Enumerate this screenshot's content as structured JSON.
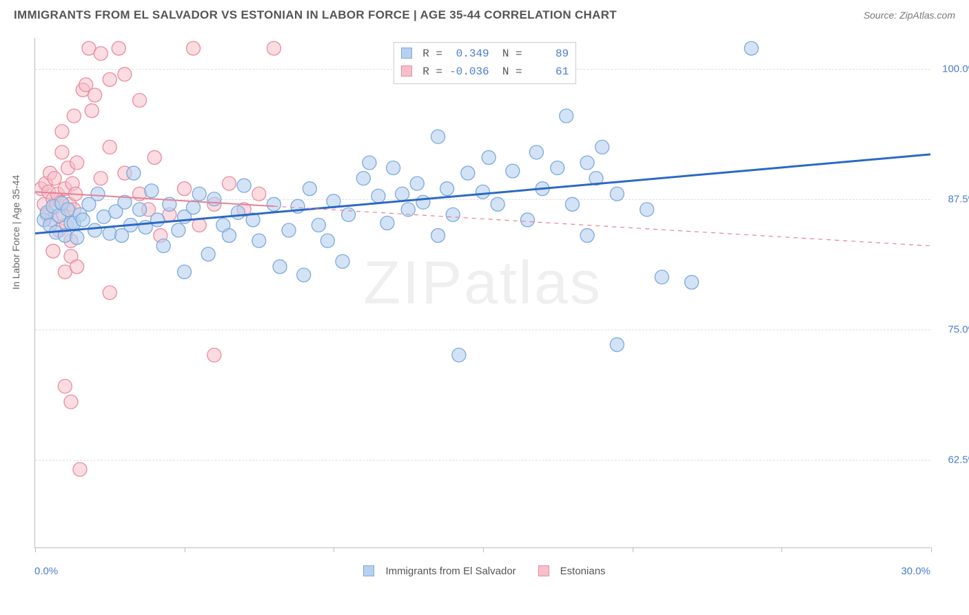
{
  "title": "IMMIGRANTS FROM EL SALVADOR VS ESTONIAN IN LABOR FORCE | AGE 35-44 CORRELATION CHART",
  "source_label": "Source: ",
  "source_name": "ZipAtlas.com",
  "ylabel": "In Labor Force | Age 35-44",
  "watermark": "ZIPatlas",
  "chart": {
    "type": "scatter",
    "xlim": [
      0,
      30
    ],
    "ylim_visible": [
      54,
      103
    ],
    "yticks": [
      62.5,
      75.0,
      87.5,
      100.0
    ],
    "ytick_labels": [
      "62.5%",
      "75.0%",
      "87.5%",
      "100.0%"
    ],
    "xtick_positions": [
      0,
      5,
      10,
      15,
      20,
      25,
      30
    ],
    "x_axis_left_label": "0.0%",
    "x_axis_right_label": "30.0%",
    "background_color": "#ffffff",
    "grid_color": "#dddddd",
    "axis_color": "#bbbbbb",
    "marker_radius": 10,
    "marker_stroke_width": 1.3,
    "series": [
      {
        "name": "Immigrants from El Salvador",
        "fill": "#b6d0ef",
        "stroke": "#7aa8dd",
        "fill_opacity": 0.6,
        "trend": {
          "color": "#2b68c5",
          "width": 3,
          "dash": "none",
          "y_at_x0": 84.2,
          "y_at_x30": 91.8
        },
        "R": "0.349",
        "N": "89",
        "points": [
          [
            0.3,
            85.5
          ],
          [
            0.4,
            86.2
          ],
          [
            0.5,
            85.0
          ],
          [
            0.6,
            86.8
          ],
          [
            0.7,
            84.3
          ],
          [
            0.8,
            85.9
          ],
          [
            0.9,
            87.1
          ],
          [
            1.0,
            84.0
          ],
          [
            1.1,
            86.5
          ],
          [
            1.2,
            85.2
          ],
          [
            1.3,
            85.2
          ],
          [
            1.4,
            83.8
          ],
          [
            1.5,
            86.0
          ],
          [
            1.6,
            85.5
          ],
          [
            1.8,
            87.0
          ],
          [
            2.0,
            84.5
          ],
          [
            2.1,
            88.0
          ],
          [
            2.3,
            85.8
          ],
          [
            2.5,
            84.2
          ],
          [
            2.7,
            86.3
          ],
          [
            2.9,
            84.0
          ],
          [
            3.0,
            87.2
          ],
          [
            3.2,
            85.0
          ],
          [
            3.3,
            90.0
          ],
          [
            3.5,
            86.5
          ],
          [
            3.7,
            84.8
          ],
          [
            3.9,
            88.3
          ],
          [
            4.1,
            85.5
          ],
          [
            4.3,
            83.0
          ],
          [
            4.5,
            87.0
          ],
          [
            4.8,
            84.5
          ],
          [
            5.0,
            85.8
          ],
          [
            5.0,
            80.5
          ],
          [
            5.3,
            86.7
          ],
          [
            5.5,
            88.0
          ],
          [
            5.8,
            82.2
          ],
          [
            6.0,
            87.5
          ],
          [
            6.3,
            85.0
          ],
          [
            6.5,
            84.0
          ],
          [
            6.8,
            86.2
          ],
          [
            7.0,
            88.8
          ],
          [
            7.3,
            85.5
          ],
          [
            7.5,
            83.5
          ],
          [
            8.0,
            87.0
          ],
          [
            8.2,
            81.0
          ],
          [
            8.5,
            84.5
          ],
          [
            8.8,
            86.8
          ],
          [
            9.0,
            80.2
          ],
          [
            9.2,
            88.5
          ],
          [
            9.5,
            85.0
          ],
          [
            9.8,
            83.5
          ],
          [
            10.0,
            87.3
          ],
          [
            10.3,
            81.5
          ],
          [
            10.5,
            86.0
          ],
          [
            11.0,
            89.5
          ],
          [
            11.2,
            91.0
          ],
          [
            11.5,
            87.8
          ],
          [
            11.8,
            85.2
          ],
          [
            12.0,
            90.5
          ],
          [
            12.3,
            88.0
          ],
          [
            12.5,
            86.5
          ],
          [
            12.8,
            89.0
          ],
          [
            13.0,
            87.2
          ],
          [
            13.5,
            93.5
          ],
          [
            13.5,
            84.0
          ],
          [
            13.8,
            88.5
          ],
          [
            14.0,
            86.0
          ],
          [
            14.2,
            72.5
          ],
          [
            14.5,
            90.0
          ],
          [
            15.0,
            88.2
          ],
          [
            15.2,
            91.5
          ],
          [
            15.5,
            87.0
          ],
          [
            16.0,
            90.2
          ],
          [
            16.5,
            85.5
          ],
          [
            16.8,
            92.0
          ],
          [
            17.0,
            88.5
          ],
          [
            17.5,
            90.5
          ],
          [
            17.8,
            95.5
          ],
          [
            18.0,
            87.0
          ],
          [
            18.5,
            91.0
          ],
          [
            18.5,
            84.0
          ],
          [
            18.8,
            89.5
          ],
          [
            19.0,
            92.5
          ],
          [
            19.5,
            88.0
          ],
          [
            19.5,
            73.5
          ],
          [
            20.5,
            86.5
          ],
          [
            21.0,
            80.0
          ],
          [
            22.0,
            79.5
          ],
          [
            24.0,
            102.0
          ]
        ]
      },
      {
        "name": "Estonians",
        "fill": "#f6bfc9",
        "stroke": "#e98aa0",
        "fill_opacity": 0.55,
        "trend": {
          "color": "#e57f96",
          "width": 2,
          "dash_solid_until_x": 8.0,
          "dash": "6 6",
          "y_at_x0": 88.2,
          "y_at_x30": 83.0
        },
        "R": "-0.036",
        "N": "61",
        "points": [
          [
            0.2,
            88.5
          ],
          [
            0.3,
            87.0
          ],
          [
            0.35,
            89.0
          ],
          [
            0.4,
            86.0
          ],
          [
            0.45,
            88.2
          ],
          [
            0.5,
            90.0
          ],
          [
            0.55,
            85.5
          ],
          [
            0.6,
            87.5
          ],
          [
            0.65,
            89.5
          ],
          [
            0.7,
            86.8
          ],
          [
            0.75,
            88.0
          ],
          [
            0.8,
            84.5
          ],
          [
            0.85,
            87.2
          ],
          [
            0.9,
            92.0
          ],
          [
            0.95,
            86.0
          ],
          [
            1.0,
            88.5
          ],
          [
            1.05,
            85.0
          ],
          [
            1.1,
            90.5
          ],
          [
            1.15,
            87.0
          ],
          [
            1.2,
            83.5
          ],
          [
            1.25,
            89.0
          ],
          [
            1.3,
            86.5
          ],
          [
            1.35,
            88.0
          ],
          [
            1.4,
            91.0
          ],
          [
            1.0,
            80.5
          ],
          [
            1.2,
            82.0
          ],
          [
            1.4,
            81.0
          ],
          [
            1.3,
            95.5
          ],
          [
            1.6,
            98.0
          ],
          [
            1.8,
            102.0
          ],
          [
            2.0,
            97.5
          ],
          [
            2.2,
            101.5
          ],
          [
            2.5,
            92.5
          ],
          [
            2.5,
            99.0
          ],
          [
            2.8,
            102.0
          ],
          [
            3.0,
            90.0
          ],
          [
            3.0,
            99.5
          ],
          [
            3.5,
            88.0
          ],
          [
            3.5,
            97.0
          ],
          [
            4.0,
            91.5
          ],
          [
            4.5,
            86.0
          ],
          [
            5.0,
            88.5
          ],
          [
            5.3,
            102.0
          ],
          [
            5.5,
            85.0
          ],
          [
            6.0,
            87.0
          ],
          [
            6.0,
            72.5
          ],
          [
            6.5,
            89.0
          ],
          [
            7.0,
            86.5
          ],
          [
            7.5,
            88.0
          ],
          [
            8.0,
            102.0
          ],
          [
            1.0,
            69.5
          ],
          [
            1.2,
            68.0
          ],
          [
            2.5,
            78.5
          ],
          [
            1.5,
            61.5
          ],
          [
            1.7,
            98.5
          ],
          [
            1.9,
            96.0
          ],
          [
            0.9,
            94.0
          ],
          [
            0.6,
            82.5
          ],
          [
            2.2,
            89.5
          ],
          [
            4.2,
            84.0
          ],
          [
            3.8,
            86.5
          ]
        ]
      }
    ]
  },
  "legend_bottom": [
    {
      "swatch_fill": "#b6d0ef",
      "swatch_stroke": "#7aa8dd",
      "label": "Immigrants from El Salvador"
    },
    {
      "swatch_fill": "#f6bfc9",
      "swatch_stroke": "#e98aa0",
      "label": "Estonians"
    }
  ],
  "legend_top_labels": {
    "R": "R =",
    "N": "N ="
  }
}
